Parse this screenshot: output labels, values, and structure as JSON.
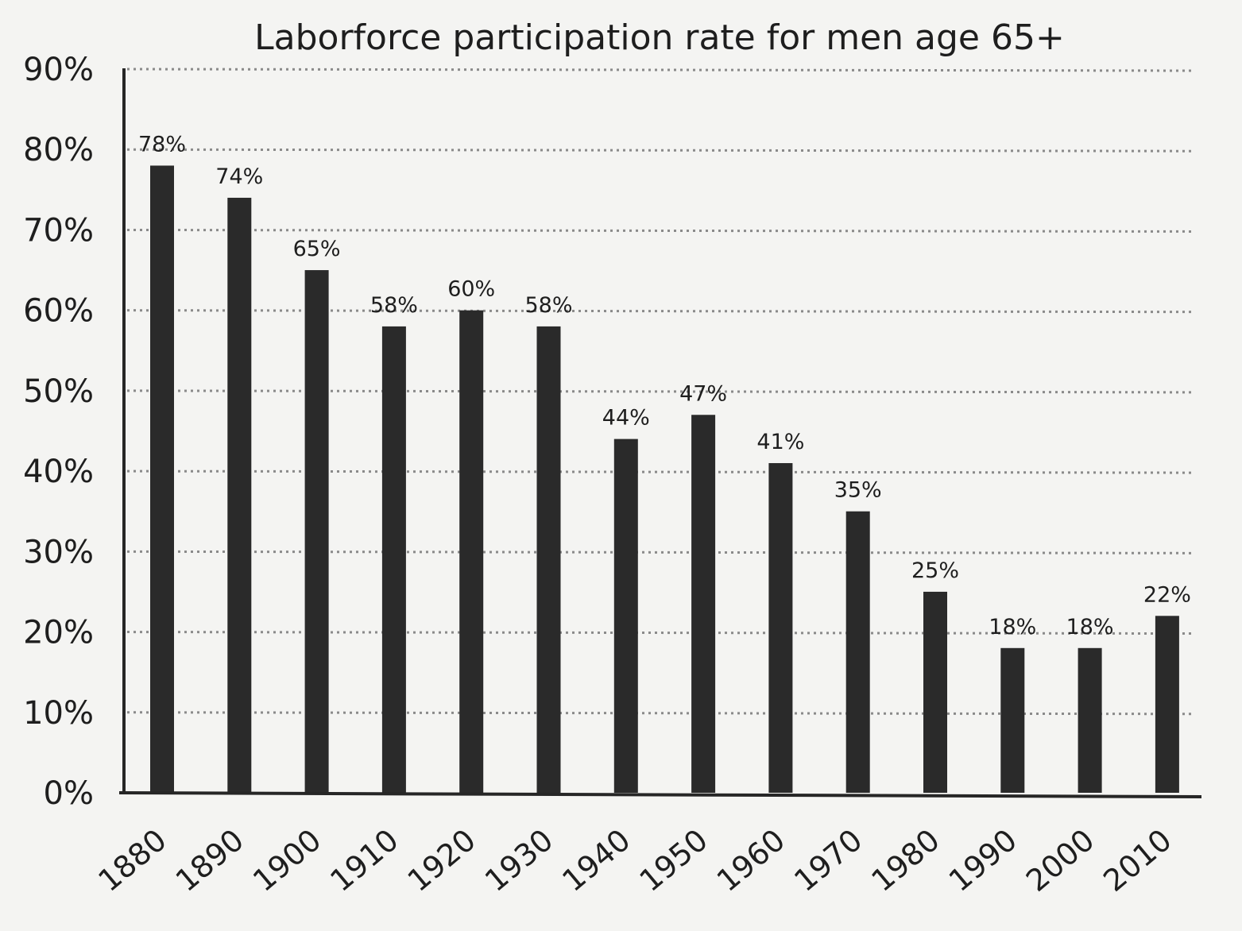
{
  "chart_data": {
    "type": "bar",
    "title": "Laborforce participation rate for men age 65+",
    "categories": [
      "1880",
      "1890",
      "1900",
      "1910",
      "1920",
      "1930",
      "1940",
      "1950",
      "1960",
      "1970",
      "1980",
      "1990",
      "2000",
      "2010"
    ],
    "values": [
      78,
      74,
      65,
      58,
      60,
      58,
      44,
      47,
      41,
      35,
      25,
      18,
      18,
      22
    ],
    "data_labels": [
      "78%",
      "74%",
      "65%",
      "58%",
      "60%",
      "58%",
      "44%",
      "47%",
      "41%",
      "35%",
      "25%",
      "18%",
      "18%",
      "22%"
    ],
    "y_ticks": [
      "0%",
      "10%",
      "20%",
      "30%",
      "40%",
      "50%",
      "60%",
      "70%",
      "80%",
      "90%"
    ],
    "xlabel": "",
    "ylabel": "",
    "ylim": [
      0,
      90
    ],
    "grid": true,
    "legend": "none",
    "colors": {
      "bar": "#2a2a2a",
      "grid": "#8a8a8a",
      "background": "#f4f4f2"
    }
  }
}
